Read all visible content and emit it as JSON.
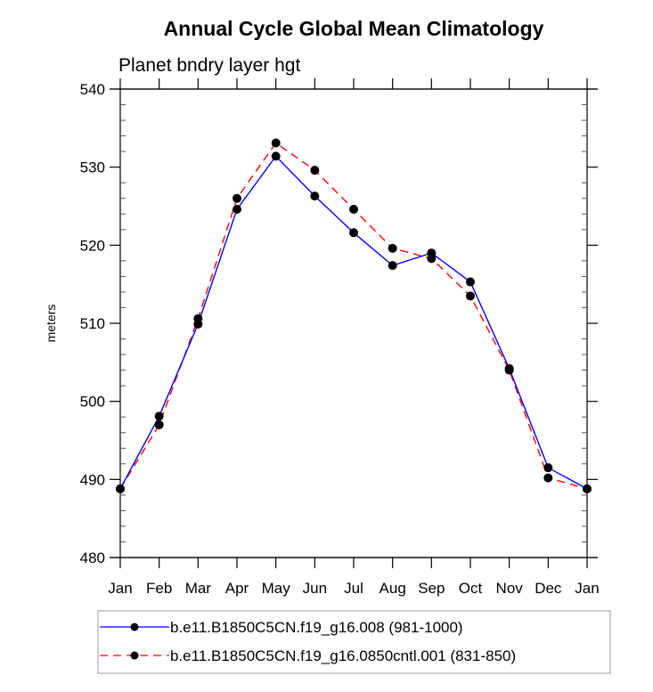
{
  "chart_data": {
    "type": "line",
    "title": "Annual Cycle Global Mean Climatology",
    "subtitle": "Planet bndry layer hgt",
    "xlabel": "",
    "ylabel": "meters",
    "categories": [
      "Jan",
      "Feb",
      "Mar",
      "Apr",
      "May",
      "Jun",
      "Jul",
      "Aug",
      "Sep",
      "Oct",
      "Nov",
      "Dec",
      "Jan"
    ],
    "ylim": [
      480,
      540
    ],
    "yticks": [
      480,
      490,
      500,
      510,
      520,
      530,
      540
    ],
    "ytick_labels": [
      "480",
      "490",
      "500",
      "510",
      "520",
      "530",
      "540"
    ],
    "y_minor_step": 2,
    "grid": false,
    "legend_position": "bottom",
    "series": [
      {
        "name": "b.e11.B1850C5CN.f19_g16.008 (981-1000)",
        "color": "#0000ff",
        "line_style": "solid",
        "marker": "filled-circle",
        "values": [
          488.8,
          498.1,
          509.9,
          524.6,
          531.4,
          526.3,
          521.6,
          517.4,
          519.0,
          515.3,
          504.2,
          491.5,
          488.8
        ]
      },
      {
        "name": "b.e11.B1850C5CN.f19_g16.0850cntl.001 (831-850)",
        "color": "#ff0000",
        "line_style": "dashed",
        "marker": "filled-circle",
        "values": [
          488.8,
          497.0,
          510.6,
          526.0,
          533.1,
          529.6,
          524.6,
          519.6,
          518.3,
          513.5,
          504.0,
          490.2,
          488.8
        ]
      }
    ]
  }
}
